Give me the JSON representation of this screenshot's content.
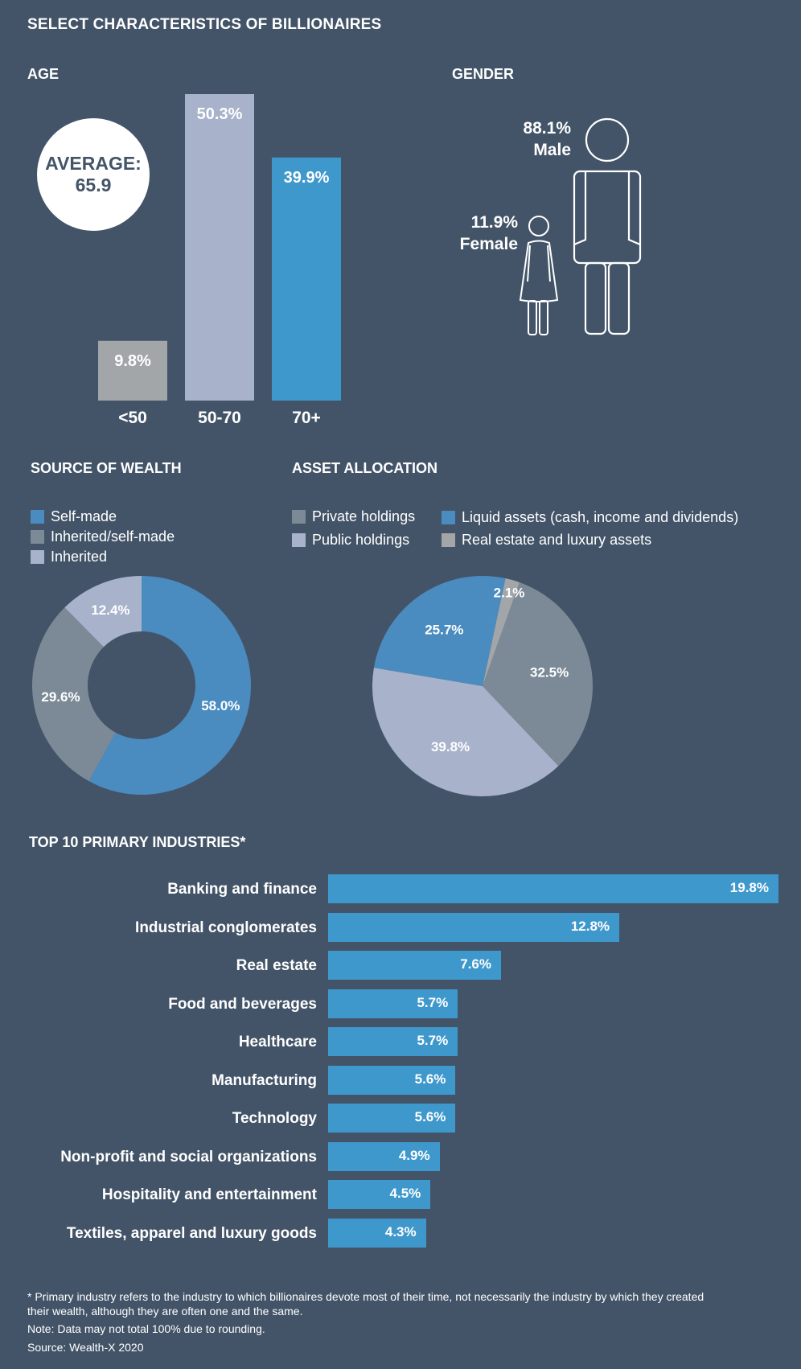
{
  "title": "SELECT CHARACTERISTICS OF BILLIONAIRES",
  "colors": {
    "background": "#435468",
    "blue": "#3f98cc",
    "steel": "#4a8cc0",
    "gray": "#7c8a97",
    "lavender": "#a8b3cb",
    "lightgray": "#a3a6a8"
  },
  "age": {
    "title": "AGE",
    "average_label": "AVERAGE:",
    "average_value": "65.9"
  },
  "gender": {
    "title": "GENDER",
    "male_pct": "88.1%",
    "male_label": "Male",
    "female_pct": "11.9%",
    "female_label": "Female",
    "icons": [
      "man-icon",
      "woman-icon"
    ]
  },
  "wealth": {
    "title": "SOURCE OF WEALTH",
    "legend": [
      "Self-made",
      "Inherited/self-made",
      "Inherited"
    ]
  },
  "assets": {
    "title": "ASSET ALLOCATION",
    "legend": [
      "Private holdings",
      "Public holdings",
      "Liquid assets (cash, income and dividends)",
      "Real estate and luxury assets"
    ]
  },
  "industries": {
    "title": "TOP 10 PRIMARY INDUSTRIES*"
  },
  "footnotes": {
    "line1": "* Primary industry refers to the industry to which billionaires devote most of their time, not necessarily the industry by which they created their wealth, although they are often one and the same.",
    "line2": "Note: Data may not total 100% due to rounding.",
    "line3": "Source: Wealth-X 2020"
  },
  "chart_data": [
    {
      "type": "bar",
      "title": "AGE",
      "categories": [
        "<50",
        "50-70",
        "70+"
      ],
      "values": [
        9.8,
        50.3,
        39.9
      ],
      "labels": [
        "9.8%",
        "50.3%",
        "39.9%"
      ],
      "colors": [
        "#a3a6a8",
        "#a8b3cb",
        "#3f98cc"
      ],
      "ylim": [
        0,
        50.3
      ]
    },
    {
      "type": "pie",
      "title": "SOURCE OF WEALTH",
      "donut": true,
      "categories": [
        "Self-made",
        "Inherited/self-made",
        "Inherited"
      ],
      "values": [
        58.0,
        29.6,
        12.4
      ],
      "labels": [
        "58.0%",
        "29.6%",
        "12.4%"
      ],
      "colors": [
        "#4a8cc0",
        "#7c8a97",
        "#a8b3cb"
      ]
    },
    {
      "type": "pie",
      "title": "ASSET ALLOCATION",
      "categories": [
        "Private holdings",
        "Public holdings",
        "Liquid assets (cash, income and dividends)",
        "Real estate and luxury assets"
      ],
      "values": [
        32.5,
        39.8,
        25.7,
        2.1
      ],
      "labels": [
        "32.5%",
        "39.8%",
        "25.7%",
        "2.1%"
      ],
      "colors": [
        "#7c8a97",
        "#a8b3cb",
        "#4a8cc0",
        "#a3a6a8"
      ]
    },
    {
      "type": "bar",
      "orientation": "horizontal",
      "title": "TOP 10 PRIMARY INDUSTRIES*",
      "categories": [
        "Banking and finance",
        "Industrial conglomerates",
        "Real estate",
        "Food and beverages",
        "Healthcare",
        "Manufacturing",
        "Technology",
        "Non-profit and social organizations",
        "Hospitality and entertainment",
        "Textiles, apparel and luxury goods"
      ],
      "values": [
        19.8,
        12.8,
        7.6,
        5.7,
        5.7,
        5.6,
        5.6,
        4.9,
        4.5,
        4.3
      ],
      "labels": [
        "19.8%",
        "12.8%",
        "7.6%",
        "5.7%",
        "5.7%",
        "5.6%",
        "5.6%",
        "4.9%",
        "4.5%",
        "4.3%"
      ],
      "xlim": [
        0,
        19.8
      ]
    }
  ]
}
